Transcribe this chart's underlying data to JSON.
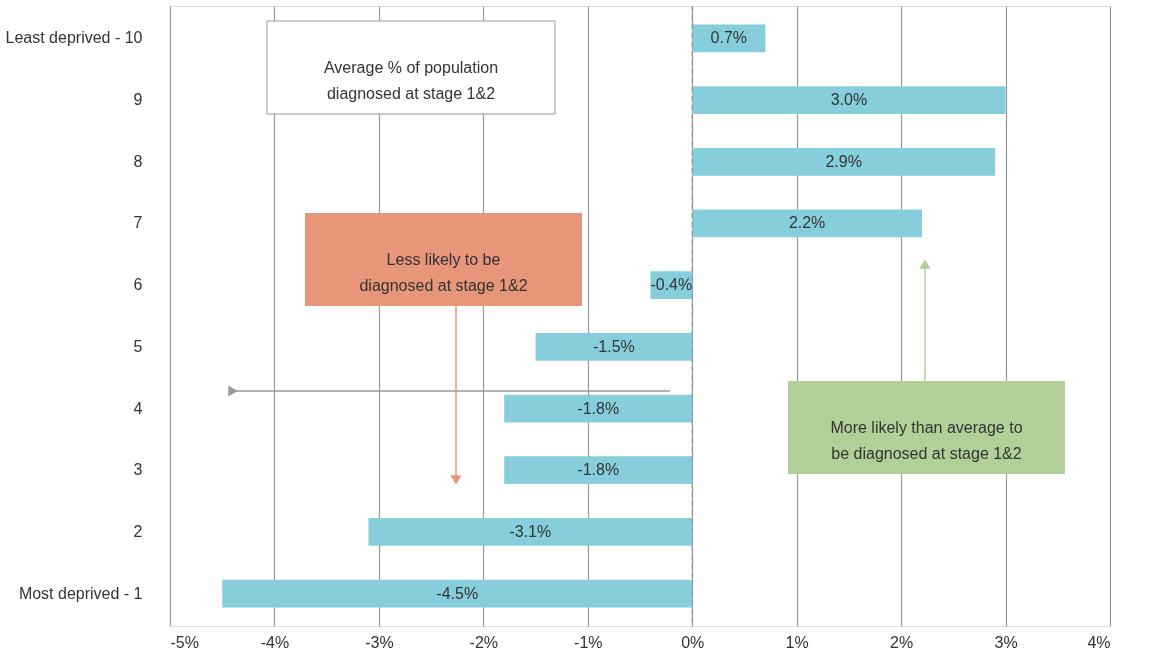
{
  "chart_data": {
    "type": "bar",
    "orientation": "horizontal",
    "categories": [
      "Least deprived - 10",
      "9",
      "8",
      "7",
      "6",
      "5",
      "4",
      "3",
      "2",
      "Most deprived - 1"
    ],
    "values": [
      0.7,
      3.0,
      2.9,
      2.2,
      -0.4,
      -1.5,
      -1.8,
      -1.8,
      -3.1,
      -4.5
    ],
    "value_labels": [
      "0.7%",
      "3.0%",
      "2.9%",
      "2.2%",
      "-0.4%",
      "-1.5%",
      "-1.8%",
      "-1.8%",
      "-3.1%",
      "-4.5%"
    ],
    "color": "#86cedc",
    "xlim": [
      -5,
      4
    ],
    "xticks": [
      {
        "value": -5,
        "label": "-5%"
      },
      {
        "value": -4,
        "label": "-4%"
      },
      {
        "value": -3,
        "label": "-3%"
      },
      {
        "value": -2,
        "label": "-2%"
      },
      {
        "value": -1,
        "label": "-1%"
      },
      {
        "value": 0,
        "label": "0%"
      },
      {
        "value": 1,
        "label": "1%"
      },
      {
        "value": 2,
        "label": "2%"
      },
      {
        "value": 3,
        "label": "3%"
      },
      {
        "value": 4,
        "label": "4%"
      }
    ],
    "grid": "x",
    "ref_lines": [
      {
        "axis": "x",
        "value": 0,
        "label": null,
        "color": "#999999",
        "line_style": "dashed"
      }
    ],
    "annotations": [
      "Average % of population\ndiagnosed at stage 1&2",
      "Less likely to be\ndiagnosed at stage 1&2",
      "More likely than average to\nbe diagnosed at stage 1&2"
    ]
  }
}
